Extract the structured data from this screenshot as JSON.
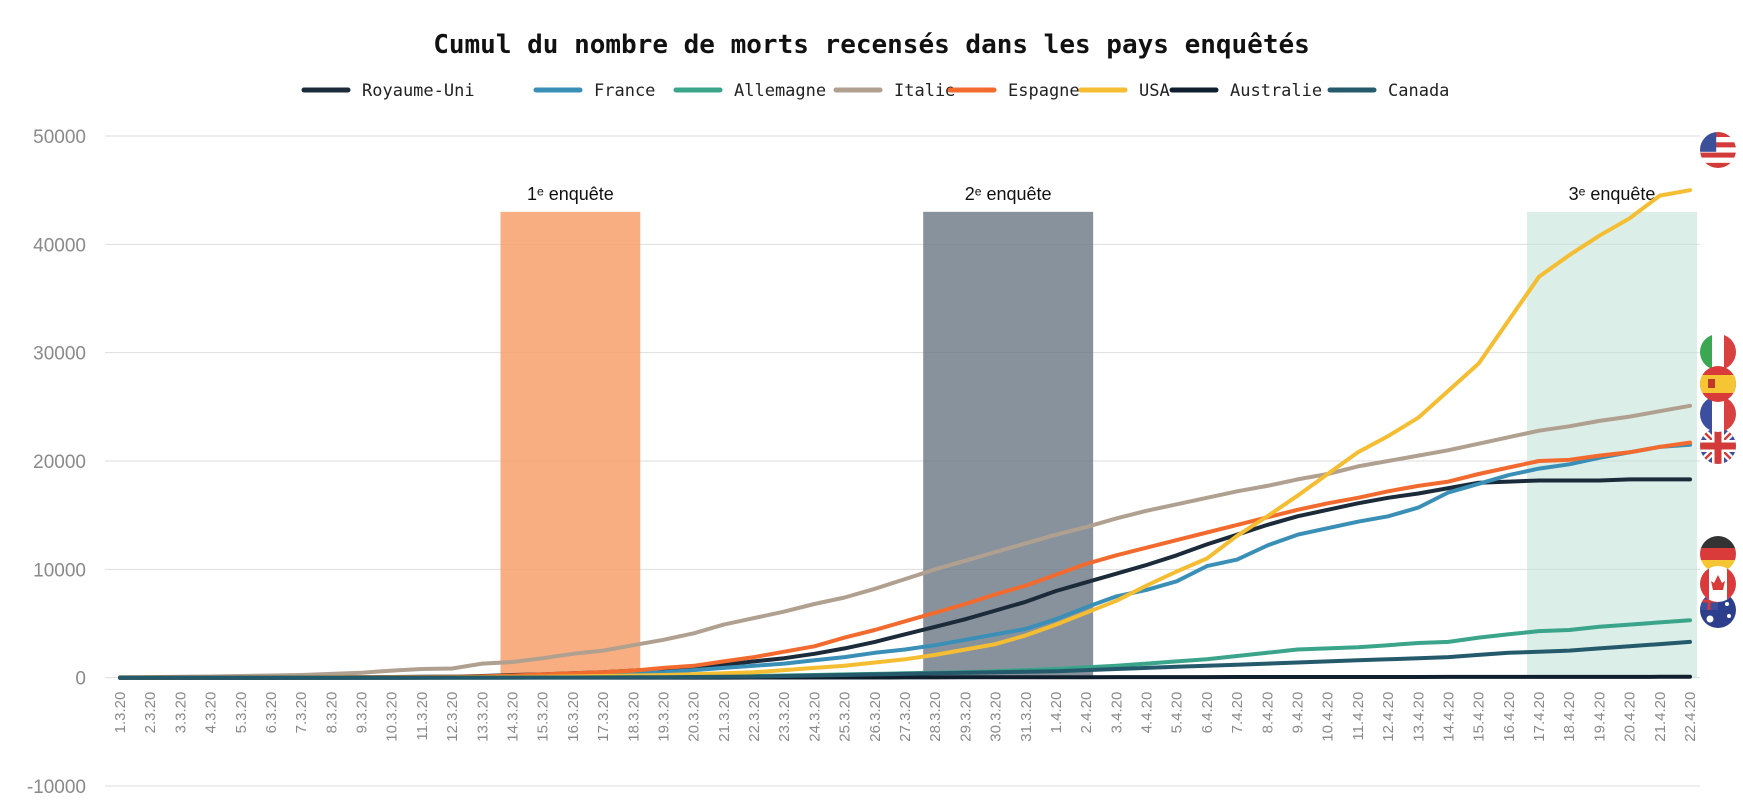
{
  "chart_data": {
    "type": "line",
    "title": "Cumul du nombre de morts recensés dans les pays enquêtés",
    "xlabel": "",
    "ylabel": "",
    "ylim": [
      -10000,
      50000
    ],
    "yticks": [
      "-10000",
      "0",
      "10000",
      "20000",
      "30000",
      "40000",
      "50000"
    ],
    "grid": true,
    "legend": "top",
    "categories": [
      "1.3.20",
      "2.3.20",
      "3.3.20",
      "4.3.20",
      "5.3.20",
      "6.3.20",
      "7.3.20",
      "8.3.20",
      "9.3.20",
      "10.3.20",
      "11.3.20",
      "12.3.20",
      "13.3.20",
      "14.3.20",
      "15.3.20",
      "16.3.20",
      "17.3.20",
      "18.3.20",
      "19.3.20",
      "20.3.20",
      "21.3.20",
      "22.3.20",
      "23.3.20",
      "24.3.20",
      "25.3.20",
      "26.3.20",
      "27.3.20",
      "28.3.20",
      "29.3.20",
      "30.3.20",
      "31.3.20",
      "1.4.20",
      "2.4.20",
      "3.4.20",
      "4.4.20",
      "5.4.20",
      "6.4.20",
      "7.4.20",
      "8.4.20",
      "9.4.20",
      "10.4.20",
      "11.4.20",
      "12.4.20",
      "13.4.20",
      "14.4.20",
      "15.4.20",
      "16.4.20",
      "17.4.20",
      "18.4.20",
      "19.4.20",
      "20.4.20",
      "21.4.20",
      "22.4.20"
    ],
    "series": [
      {
        "name": "Royaume-Uni",
        "color": "#1c2b3a",
        "flag": "uk-flag-icon",
        "values": [
          1,
          2,
          2,
          3,
          5,
          10,
          20,
          30,
          40,
          60,
          80,
          100,
          150,
          250,
          300,
          400,
          500,
          650,
          800,
          1000,
          1200,
          1500,
          1800,
          2200,
          2700,
          3300,
          4000,
          4700,
          5400,
          6200,
          7000,
          8000,
          8800,
          9600,
          10400,
          11300,
          12300,
          13200,
          14100,
          14900,
          15500,
          16100,
          16600,
          17000,
          17500,
          18000,
          18100,
          18200,
          18200,
          18200,
          18300,
          18300,
          18300
        ]
      },
      {
        "name": "France",
        "color": "#3a8fb7",
        "flag": "france-flag-icon",
        "values": [
          2,
          3,
          4,
          4,
          6,
          9,
          15,
          20,
          30,
          50,
          60,
          80,
          100,
          150,
          200,
          250,
          300,
          400,
          500,
          700,
          900,
          1100,
          1300,
          1600,
          1900,
          2300,
          2600,
          3000,
          3500,
          4000,
          4500,
          5400,
          6500,
          7500,
          8100,
          8900,
          10300,
          10900,
          12200,
          13200,
          13800,
          14400,
          14900,
          15700,
          17100,
          17900,
          18700,
          19300,
          19700,
          20300,
          20800,
          21300,
          21500
        ]
      },
      {
        "name": "Allemagne",
        "color": "#3aa58a",
        "flag": "germany-flag-icon",
        "values": [
          0,
          0,
          0,
          0,
          0,
          0,
          0,
          0,
          2,
          3,
          5,
          7,
          10,
          15,
          20,
          30,
          40,
          60,
          80,
          100,
          120,
          150,
          200,
          250,
          300,
          350,
          400,
          450,
          500,
          600,
          700,
          800,
          950,
          1100,
          1300,
          1500,
          1700,
          2000,
          2300,
          2600,
          2700,
          2800,
          3000,
          3200,
          3300,
          3700,
          4000,
          4300,
          4400,
          4700,
          4900,
          5100,
          5300
        ]
      },
      {
        "name": "Italie",
        "color": "#b0a090",
        "flag": "italy-flag-icon",
        "values": [
          30,
          50,
          80,
          110,
          150,
          200,
          250,
          350,
          450,
          650,
          800,
          850,
          1300,
          1450,
          1800,
          2200,
          2500,
          3000,
          3500,
          4100,
          4900,
          5500,
          6100,
          6800,
          7400,
          8200,
          9100,
          10000,
          10800,
          11600,
          12400,
          13200,
          13900,
          14700,
          15400,
          16000,
          16600,
          17200,
          17700,
          18300,
          18800,
          19500,
          20000,
          20500,
          21000,
          21600,
          22200,
          22800,
          23200,
          23700,
          24100,
          24600,
          25100
        ]
      },
      {
        "name": "Espagne",
        "color": "#f26a2e",
        "flag": "spain-flag-icon",
        "values": [
          0,
          0,
          0,
          1,
          2,
          5,
          10,
          20,
          30,
          40,
          60,
          80,
          120,
          200,
          300,
          400,
          500,
          650,
          900,
          1100,
          1500,
          1900,
          2400,
          2900,
          3700,
          4400,
          5200,
          6000,
          6800,
          7700,
          8500,
          9500,
          10500,
          11300,
          12000,
          12700,
          13400,
          14100,
          14800,
          15500,
          16100,
          16600,
          17200,
          17700,
          18100,
          18800,
          19400,
          20000,
          20100,
          20500,
          20800,
          21300,
          21700
        ]
      },
      {
        "name": "USA",
        "color": "#f5bd32",
        "flag": "usa-flag-icon",
        "values": [
          1,
          2,
          5,
          8,
          11,
          14,
          17,
          22,
          26,
          30,
          38,
          45,
          57,
          68,
          90,
          120,
          150,
          200,
          250,
          310,
          400,
          500,
          700,
          900,
          1100,
          1400,
          1700,
          2100,
          2600,
          3100,
          3900,
          4900,
          6000,
          7100,
          8500,
          9800,
          11000,
          13100,
          14900,
          16800,
          18800,
          20800,
          22300,
          24000,
          26500,
          29000,
          33000,
          37000,
          39000,
          40800,
          42400,
          44500,
          45000
        ]
      },
      {
        "name": "Australie",
        "color": "#0f1f2e",
        "flag": "australia-flag-icon",
        "values": [
          0,
          0,
          0,
          0,
          0,
          0,
          0,
          1,
          1,
          1,
          2,
          3,
          3,
          4,
          5,
          5,
          6,
          7,
          7,
          8,
          10,
          12,
          14,
          16,
          18,
          20,
          24,
          28,
          30,
          32,
          35,
          40,
          45,
          48,
          50,
          52,
          55,
          58,
          60,
          62,
          63,
          64,
          65,
          66,
          67,
          68,
          70,
          72,
          73,
          74,
          75,
          76,
          77
        ]
      },
      {
        "name": "Canada",
        "color": "#245a6b",
        "flag": "canada-flag-icon",
        "values": [
          0,
          0,
          0,
          0,
          0,
          0,
          0,
          0,
          1,
          1,
          1,
          2,
          5,
          10,
          15,
          20,
          25,
          30,
          40,
          60,
          80,
          100,
          150,
          200,
          250,
          300,
          350,
          400,
          450,
          500,
          550,
          600,
          700,
          800,
          900,
          1000,
          1100,
          1200,
          1300,
          1400,
          1500,
          1600,
          1700,
          1800,
          1900,
          2100,
          2300,
          2400,
          2500,
          2700,
          2900,
          3100,
          3300
        ]
      }
    ],
    "annotations": [
      {
        "label": "1ᵉ enquête",
        "start": "14.3.20",
        "end": "18.3.20",
        "color": "#f7a06a",
        "opacity": 0.85
      },
      {
        "label": "2ᵉ enquête",
        "start": "28.3.20",
        "end": "2.4.20",
        "color": "#6a7784",
        "opacity": 0.8
      },
      {
        "label": "3ᵉ enquête",
        "start": "17.4.20",
        "end": "22.4.20",
        "color": "#bfe0d6",
        "opacity": 0.55
      }
    ]
  }
}
